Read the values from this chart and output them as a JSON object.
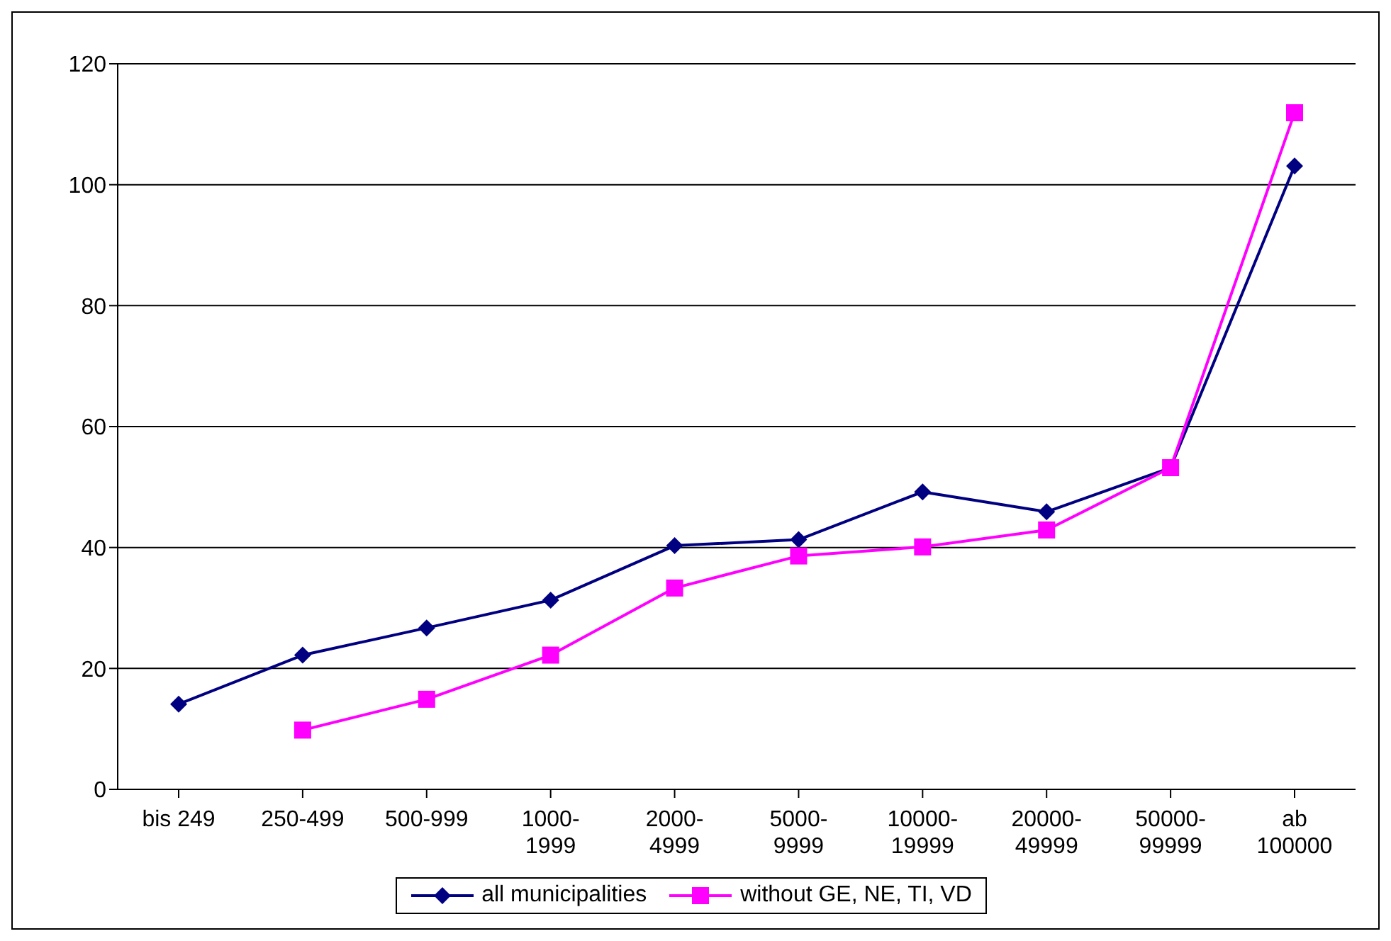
{
  "chart_data": {
    "type": "line",
    "categories": [
      "bis 249",
      "250-499",
      "500-999",
      "1000-1999",
      "2000-4999",
      "5000-9999",
      "10000-19999",
      "20000-49999",
      "50000-99999",
      "ab 100000"
    ],
    "series": [
      {
        "name": "all municipalities",
        "color": "#000080",
        "marker": "diamond",
        "values": [
          14.1,
          22.2,
          26.7,
          31.3,
          40.3,
          41.3,
          49.2,
          45.9,
          53.2,
          103.1
        ]
      },
      {
        "name": "without GE, NE, TI, VD",
        "color": "#ff00ff",
        "marker": "square",
        "values": [
          null,
          9.8,
          14.9,
          22.2,
          33.3,
          38.6,
          40.1,
          42.9,
          53.2,
          111.9
        ]
      }
    ],
    "ylim": [
      0,
      120
    ],
    "yticks": [
      0,
      20,
      40,
      60,
      80,
      100,
      120
    ],
    "grid": "y",
    "legend": "bottom",
    "line_style": "solid"
  }
}
